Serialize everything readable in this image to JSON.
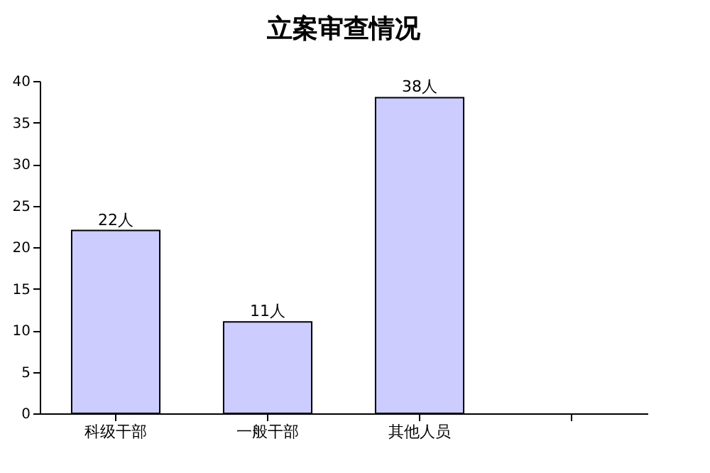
{
  "chart_data": {
    "type": "bar",
    "title": "立案审查情况",
    "categories": [
      "科级干部",
      "一般干部",
      "其他人员",
      null
    ],
    "values": [
      22,
      11,
      38,
      null
    ],
    "value_labels": [
      "22人",
      "11人",
      "38人",
      null
    ],
    "color": "#ccccff",
    "ylim": [
      0,
      40
    ],
    "yticks": [
      0,
      5,
      10,
      15,
      20,
      25,
      30,
      35,
      40
    ],
    "grid": false
  }
}
